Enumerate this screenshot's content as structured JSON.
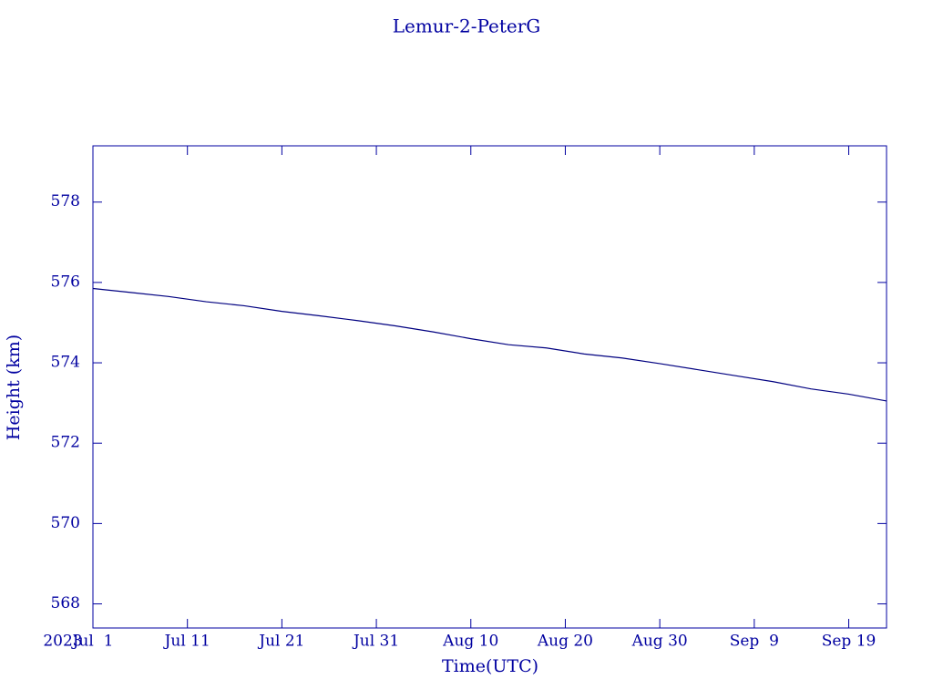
{
  "chart_data": {
    "type": "line",
    "title": "Lemur-2-PeterG",
    "x_label": "Time(UTC)",
    "y_label": "Height (km)",
    "year_label": "2023",
    "x": [
      "2023-07-01",
      "2023-07-05",
      "2023-07-09",
      "2023-07-13",
      "2023-07-17",
      "2023-07-21",
      "2023-07-25",
      "2023-07-29",
      "2023-08-02",
      "2023-08-06",
      "2023-08-10",
      "2023-08-14",
      "2023-08-18",
      "2023-08-22",
      "2023-08-26",
      "2023-08-30",
      "2023-09-03",
      "2023-09-07",
      "2023-09-11",
      "2023-09-15",
      "2023-09-19",
      "2023-09-23"
    ],
    "series": [
      {
        "name": "Height",
        "color": "#000080",
        "values": [
          575.85,
          575.75,
          575.65,
          575.52,
          575.42,
          575.28,
          575.17,
          575.05,
          574.92,
          574.77,
          574.6,
          574.45,
          574.37,
          574.22,
          574.12,
          573.98,
          573.83,
          573.68,
          573.53,
          573.35,
          573.22,
          573.05
        ]
      }
    ],
    "xlim": [
      "2023-07-01",
      "2023-09-23"
    ],
    "xticks": [
      {
        "value": "2023-07-01",
        "label": "Jul  1"
      },
      {
        "value": "2023-07-11",
        "label": "Jul 11"
      },
      {
        "value": "2023-07-21",
        "label": "Jul 21"
      },
      {
        "value": "2023-07-31",
        "label": "Jul 31"
      },
      {
        "value": "2023-08-10",
        "label": "Aug 10"
      },
      {
        "value": "2023-08-20",
        "label": "Aug 20"
      },
      {
        "value": "2023-08-30",
        "label": "Aug 30"
      },
      {
        "value": "2023-09-09",
        "label": "Sep  9"
      },
      {
        "value": "2023-09-19",
        "label": "Sep 19"
      }
    ],
    "ylim": [
      567.4,
      579.4
    ],
    "yticks": [
      568,
      570,
      572,
      574,
      576,
      578
    ]
  }
}
